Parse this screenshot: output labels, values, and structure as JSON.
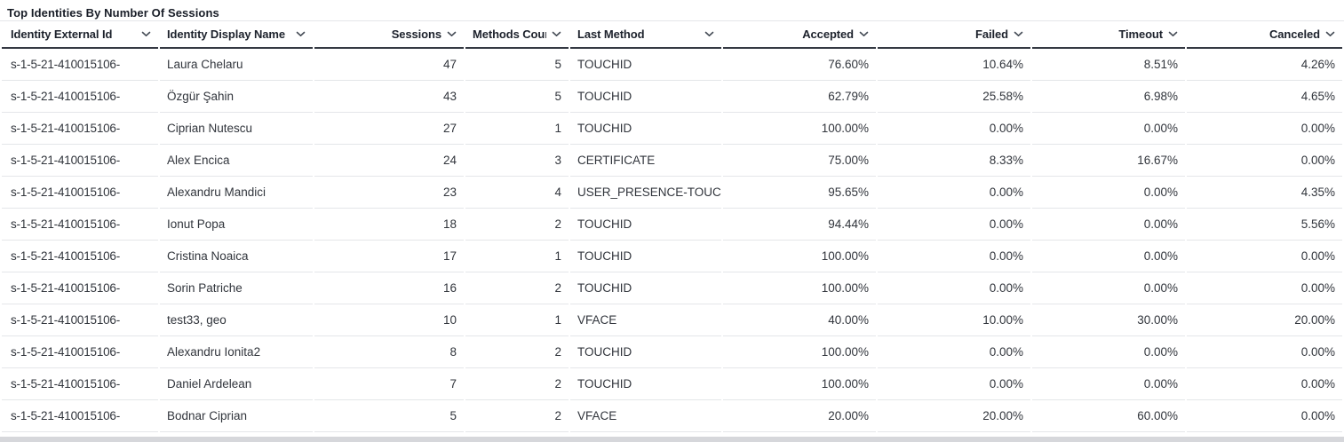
{
  "title": "Top Identities By Number Of Sessions",
  "icons": {
    "sort": "chevron-down"
  },
  "colors": {
    "background": "#ffffff",
    "title_text": "#181d27",
    "header_text": "#1d222c",
    "text": "#31353c",
    "header_border": "#353943",
    "row_border": "#e4e6e9",
    "chevron": "#434a54",
    "scrollbar_track": "#d6d7db"
  },
  "table": {
    "field_order": [
      "external_id",
      "display_name",
      "sessions",
      "methods_count",
      "last_method",
      "accepted",
      "failed",
      "timeout",
      "canceled"
    ],
    "columns": [
      {
        "label": "Identity External Id",
        "align": "left",
        "sortable": true
      },
      {
        "label": "Identity Display Name",
        "align": "left",
        "sortable": true
      },
      {
        "label": "Sessions",
        "align": "right",
        "sortable": true
      },
      {
        "label": "Methods Count",
        "align": "right",
        "sortable": true
      },
      {
        "label": "Last Method",
        "align": "left",
        "sortable": true
      },
      {
        "label": "Accepted",
        "align": "right",
        "sortable": true
      },
      {
        "label": "Failed",
        "align": "right",
        "sortable": true
      },
      {
        "label": "Timeout",
        "align": "right",
        "sortable": true
      },
      {
        "label": "Canceled",
        "align": "right",
        "sortable": true
      }
    ],
    "rows": [
      {
        "external_id": "s-1-5-21-410015106-",
        "display_name": "Laura Chelaru",
        "sessions": 47,
        "methods_count": 5,
        "last_method": "TOUCHID",
        "accepted": "76.60%",
        "failed": "10.64%",
        "timeout": "8.51%",
        "canceled": "4.26%"
      },
      {
        "external_id": "s-1-5-21-410015106-",
        "display_name": "Özgür Şahin",
        "sessions": 43,
        "methods_count": 5,
        "last_method": "TOUCHID",
        "accepted": "62.79%",
        "failed": "25.58%",
        "timeout": "6.98%",
        "canceled": "4.65%"
      },
      {
        "external_id": "s-1-5-21-410015106-",
        "display_name": "Ciprian Nutescu",
        "sessions": 27,
        "methods_count": 1,
        "last_method": "TOUCHID",
        "accepted": "100.00%",
        "failed": "0.00%",
        "timeout": "0.00%",
        "canceled": "0.00%"
      },
      {
        "external_id": "s-1-5-21-410015106-",
        "display_name": "Alex Encica",
        "sessions": 24,
        "methods_count": 3,
        "last_method": "CERTIFICATE",
        "accepted": "75.00%",
        "failed": "8.33%",
        "timeout": "16.67%",
        "canceled": "0.00%"
      },
      {
        "external_id": "s-1-5-21-410015106-",
        "display_name": "Alexandru Mandici",
        "sessions": 23,
        "methods_count": 4,
        "last_method": "USER_PRESENCE-TOUC",
        "accepted": "95.65%",
        "failed": "0.00%",
        "timeout": "0.00%",
        "canceled": "4.35%"
      },
      {
        "external_id": "s-1-5-21-410015106-",
        "display_name": "Ionut Popa",
        "sessions": 18,
        "methods_count": 2,
        "last_method": "TOUCHID",
        "accepted": "94.44%",
        "failed": "0.00%",
        "timeout": "0.00%",
        "canceled": "5.56%"
      },
      {
        "external_id": "s-1-5-21-410015106-",
        "display_name": "Cristina Noaica",
        "sessions": 17,
        "methods_count": 1,
        "last_method": "TOUCHID",
        "accepted": "100.00%",
        "failed": "0.00%",
        "timeout": "0.00%",
        "canceled": "0.00%"
      },
      {
        "external_id": "s-1-5-21-410015106-",
        "display_name": "Sorin Patriche",
        "sessions": 16,
        "methods_count": 2,
        "last_method": "TOUCHID",
        "accepted": "100.00%",
        "failed": "0.00%",
        "timeout": "0.00%",
        "canceled": "0.00%"
      },
      {
        "external_id": "s-1-5-21-410015106-",
        "display_name": "test33, geo",
        "sessions": 10,
        "methods_count": 1,
        "last_method": "VFACE",
        "accepted": "40.00%",
        "failed": "10.00%",
        "timeout": "30.00%",
        "canceled": "20.00%"
      },
      {
        "external_id": "s-1-5-21-410015106-",
        "display_name": "Alexandru Ionita2",
        "sessions": 8,
        "methods_count": 2,
        "last_method": "TOUCHID",
        "accepted": "100.00%",
        "failed": "0.00%",
        "timeout": "0.00%",
        "canceled": "0.00%"
      },
      {
        "external_id": "s-1-5-21-410015106-",
        "display_name": "Daniel Ardelean",
        "sessions": 7,
        "methods_count": 2,
        "last_method": "TOUCHID",
        "accepted": "100.00%",
        "failed": "0.00%",
        "timeout": "0.00%",
        "canceled": "0.00%"
      },
      {
        "external_id": "s-1-5-21-410015106-",
        "display_name": "Bodnar Ciprian",
        "sessions": 5,
        "methods_count": 2,
        "last_method": "VFACE",
        "accepted": "20.00%",
        "failed": "20.00%",
        "timeout": "60.00%",
        "canceled": "0.00%"
      }
    ]
  }
}
